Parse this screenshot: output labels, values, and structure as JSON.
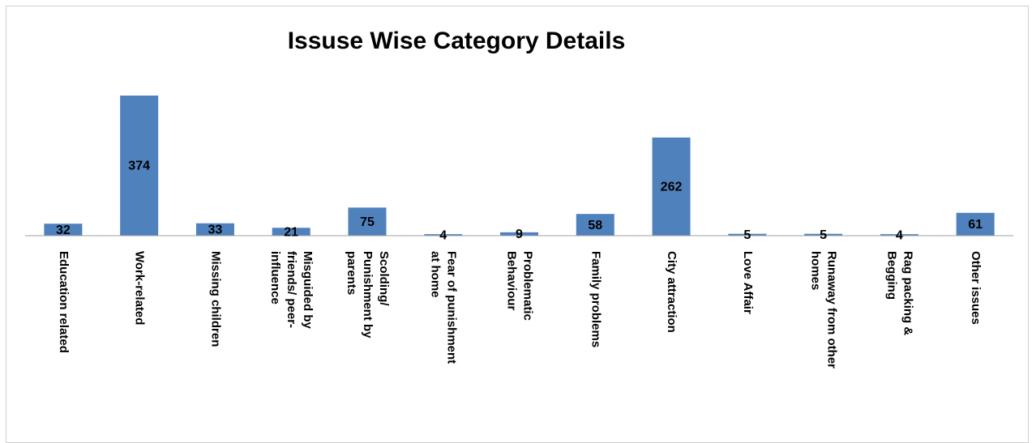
{
  "chart_data": {
    "type": "bar",
    "title": "Issuse Wise Category Details",
    "categories": [
      "Education related",
      "Work-related",
      "Missing children",
      "Misguided by\nfriends/ peer-\ninfluence",
      "Scolding/\nPunishment by\nparents",
      "Fear of punishment\nat home",
      "Problematic\nBehaviour",
      "Family problems",
      "City attraction",
      "Love Affair",
      "Runaway from other\nhomes",
      "Rag packing &\nBegging",
      "Other issues"
    ],
    "values": [
      32,
      374,
      33,
      21,
      75,
      4,
      9,
      58,
      262,
      5,
      5,
      4,
      61
    ],
    "color": "#4f81bd"
  }
}
